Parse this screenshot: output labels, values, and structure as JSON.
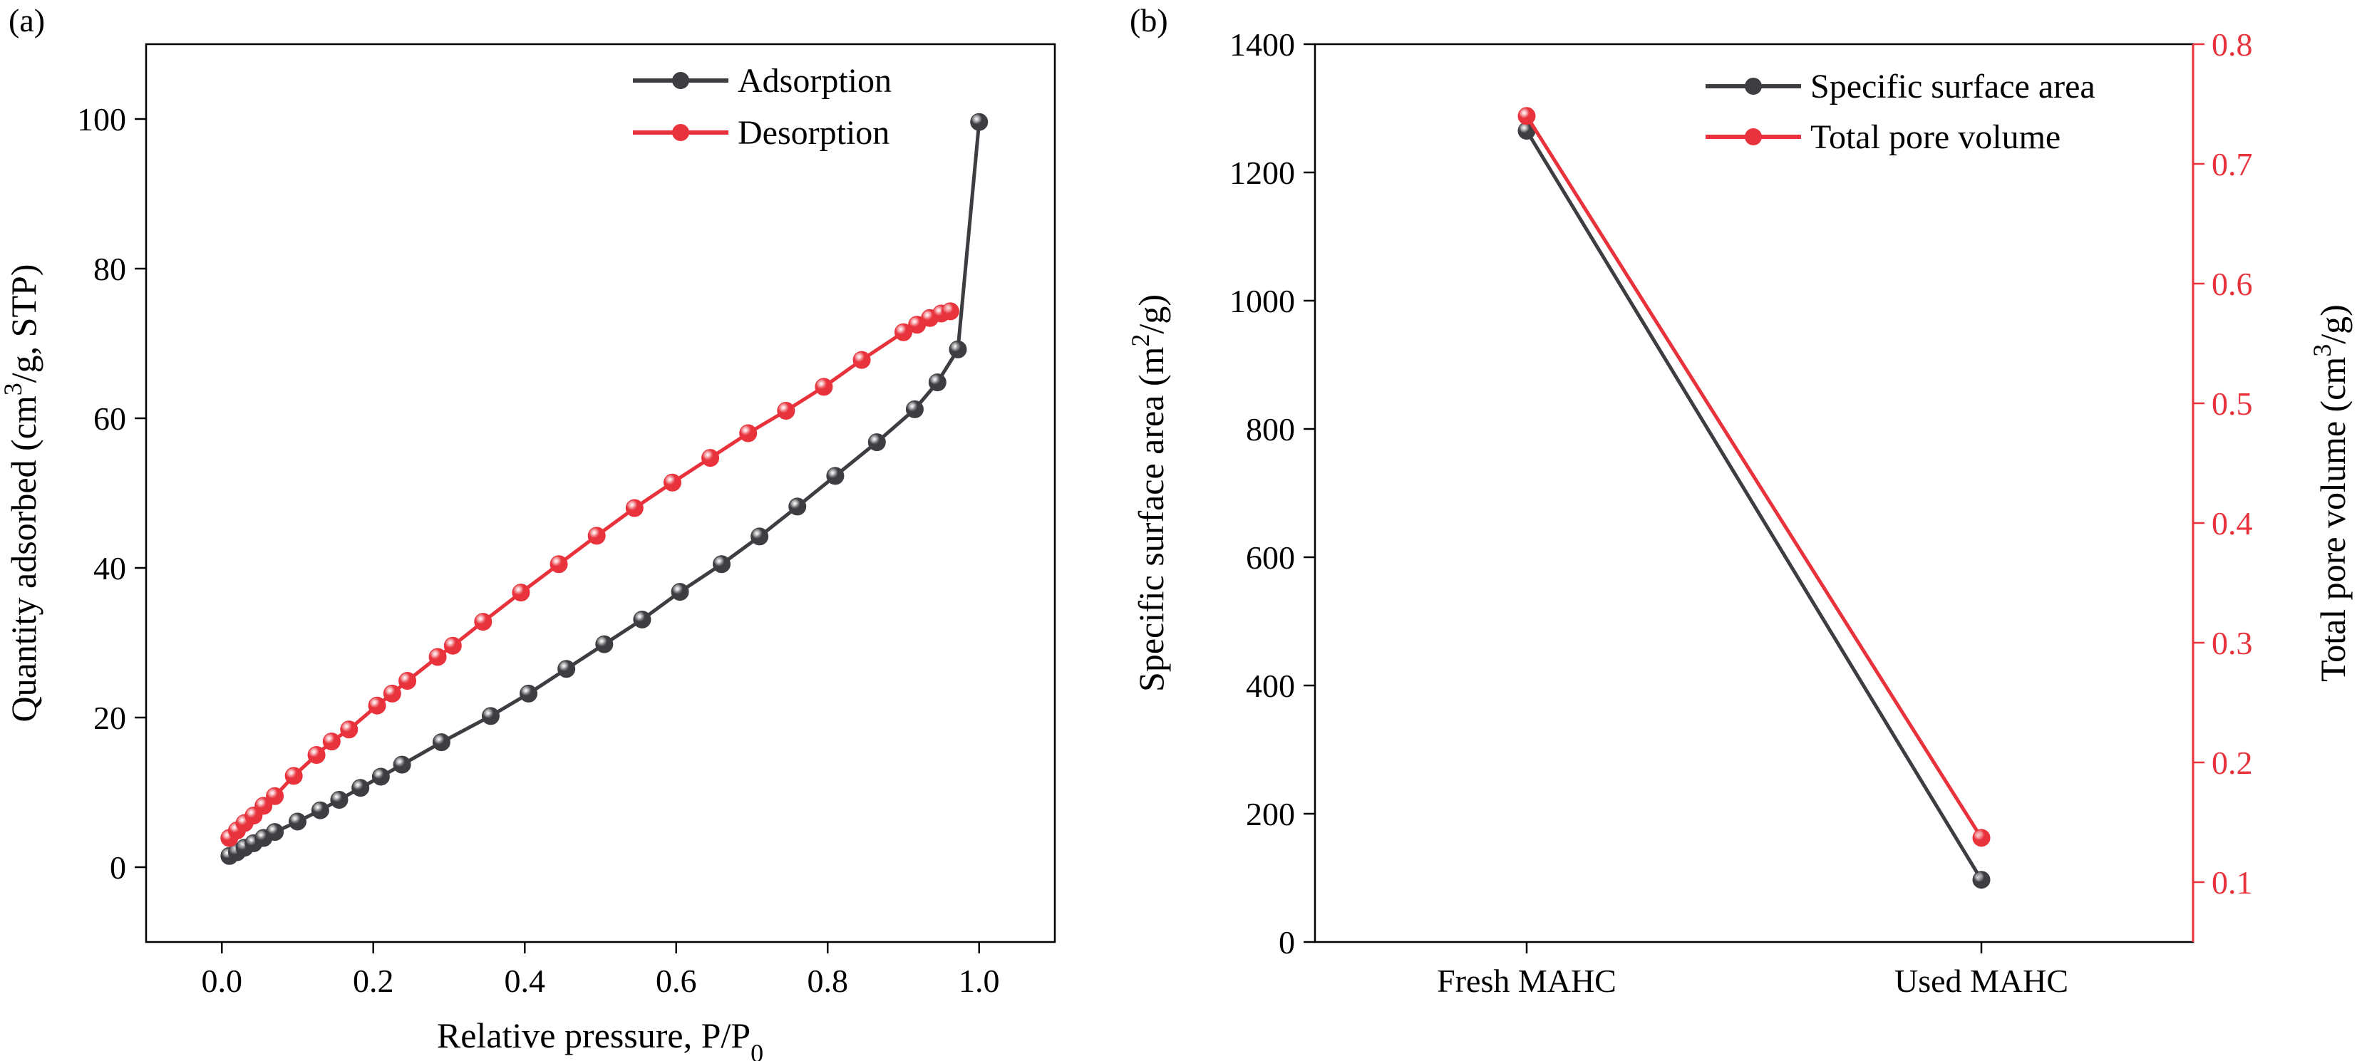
{
  "colors": {
    "adsorption": "#3d3d42",
    "desorption": "#e8323c",
    "axis_right": "#e8323c",
    "axis": "#000000"
  },
  "chart_data": [
    {
      "panel_label": "(a)",
      "type": "line",
      "xlabel": "Relative pressure, P/P",
      "xlabel_sub": "0",
      "ylabel_pre": "Quantity adsorbed (cm",
      "ylabel_sup": "3",
      "ylabel_post": "/g, STP)",
      "xlim": [
        -0.1,
        1.1
      ],
      "ylim": [
        -10,
        110
      ],
      "xticks": [
        "0.0",
        "0.2",
        "0.4",
        "0.6",
        "0.8",
        "1.0"
      ],
      "yticks": [
        "0",
        "20",
        "40",
        "60",
        "80",
        "100"
      ],
      "legend": [
        "Adsorption",
        "Desorption"
      ],
      "series": [
        {
          "name": "Adsorption",
          "color": "#3d3d42",
          "x": [
            0.01,
            0.02,
            0.03,
            0.042,
            0.055,
            0.07,
            0.1,
            0.13,
            0.155,
            0.183,
            0.21,
            0.238,
            0.29,
            0.355,
            0.405,
            0.455,
            0.505,
            0.555,
            0.605,
            0.66,
            0.71,
            0.76,
            0.81,
            0.865,
            0.915,
            0.945,
            0.972,
            1.0
          ],
          "y": [
            1.5,
            2.0,
            2.6,
            3.2,
            3.9,
            4.7,
            6.1,
            7.6,
            9.0,
            10.6,
            12.1,
            13.7,
            16.7,
            20.2,
            23.2,
            26.5,
            29.8,
            33.1,
            36.8,
            40.5,
            44.2,
            48.2,
            52.3,
            56.8,
            61.2,
            64.8,
            69.2,
            99.6
          ]
        },
        {
          "name": "Desorption",
          "color": "#e8323c",
          "x": [
            0.01,
            0.02,
            0.03,
            0.042,
            0.055,
            0.07,
            0.095,
            0.125,
            0.145,
            0.168,
            0.205,
            0.225,
            0.245,
            0.285,
            0.305,
            0.345,
            0.395,
            0.445,
            0.495,
            0.545,
            0.595,
            0.645,
            0.695,
            0.745,
            0.795,
            0.845,
            0.9,
            0.918,
            0.935,
            0.95,
            0.962
          ],
          "y": [
            3.9,
            4.9,
            5.9,
            6.9,
            8.2,
            9.5,
            12.2,
            15.0,
            16.8,
            18.4,
            21.6,
            23.2,
            24.9,
            28.1,
            29.6,
            32.8,
            36.7,
            40.5,
            44.3,
            48.0,
            51.4,
            54.7,
            58.0,
            61.0,
            64.2,
            67.8,
            71.5,
            72.5,
            73.4,
            74.0,
            74.3
          ]
        }
      ]
    },
    {
      "panel_label": "(b)",
      "type": "line",
      "categories": [
        "Fresh MAHC",
        "Used MAHC"
      ],
      "ylabel_left_pre": "Specific surface area (m",
      "ylabel_left_sup": "2",
      "ylabel_left_post": "/g)",
      "ylabel_right_pre": "Total pore volume (cm",
      "ylabel_right_sup": "3",
      "ylabel_right_post": "/g)",
      "ylim_left": [
        0,
        1400
      ],
      "ylim_right": [
        0.05,
        0.8
      ],
      "yticks_left": [
        "0",
        "200",
        "400",
        "600",
        "800",
        "1000",
        "1200",
        "1400"
      ],
      "yticks_right": [
        "0.1",
        "0.2",
        "0.3",
        "0.4",
        "0.5",
        "0.6",
        "0.7",
        "0.8"
      ],
      "legend": [
        "Specific surface area",
        "Total pore volume"
      ],
      "series": [
        {
          "name": "Specific surface area",
          "axis": "left",
          "color": "#3d3d42",
          "values": [
            1265,
            97
          ]
        },
        {
          "name": "Total pore volume",
          "axis": "right",
          "color": "#e8323c",
          "values": [
            0.74,
            0.137
          ]
        }
      ]
    }
  ]
}
